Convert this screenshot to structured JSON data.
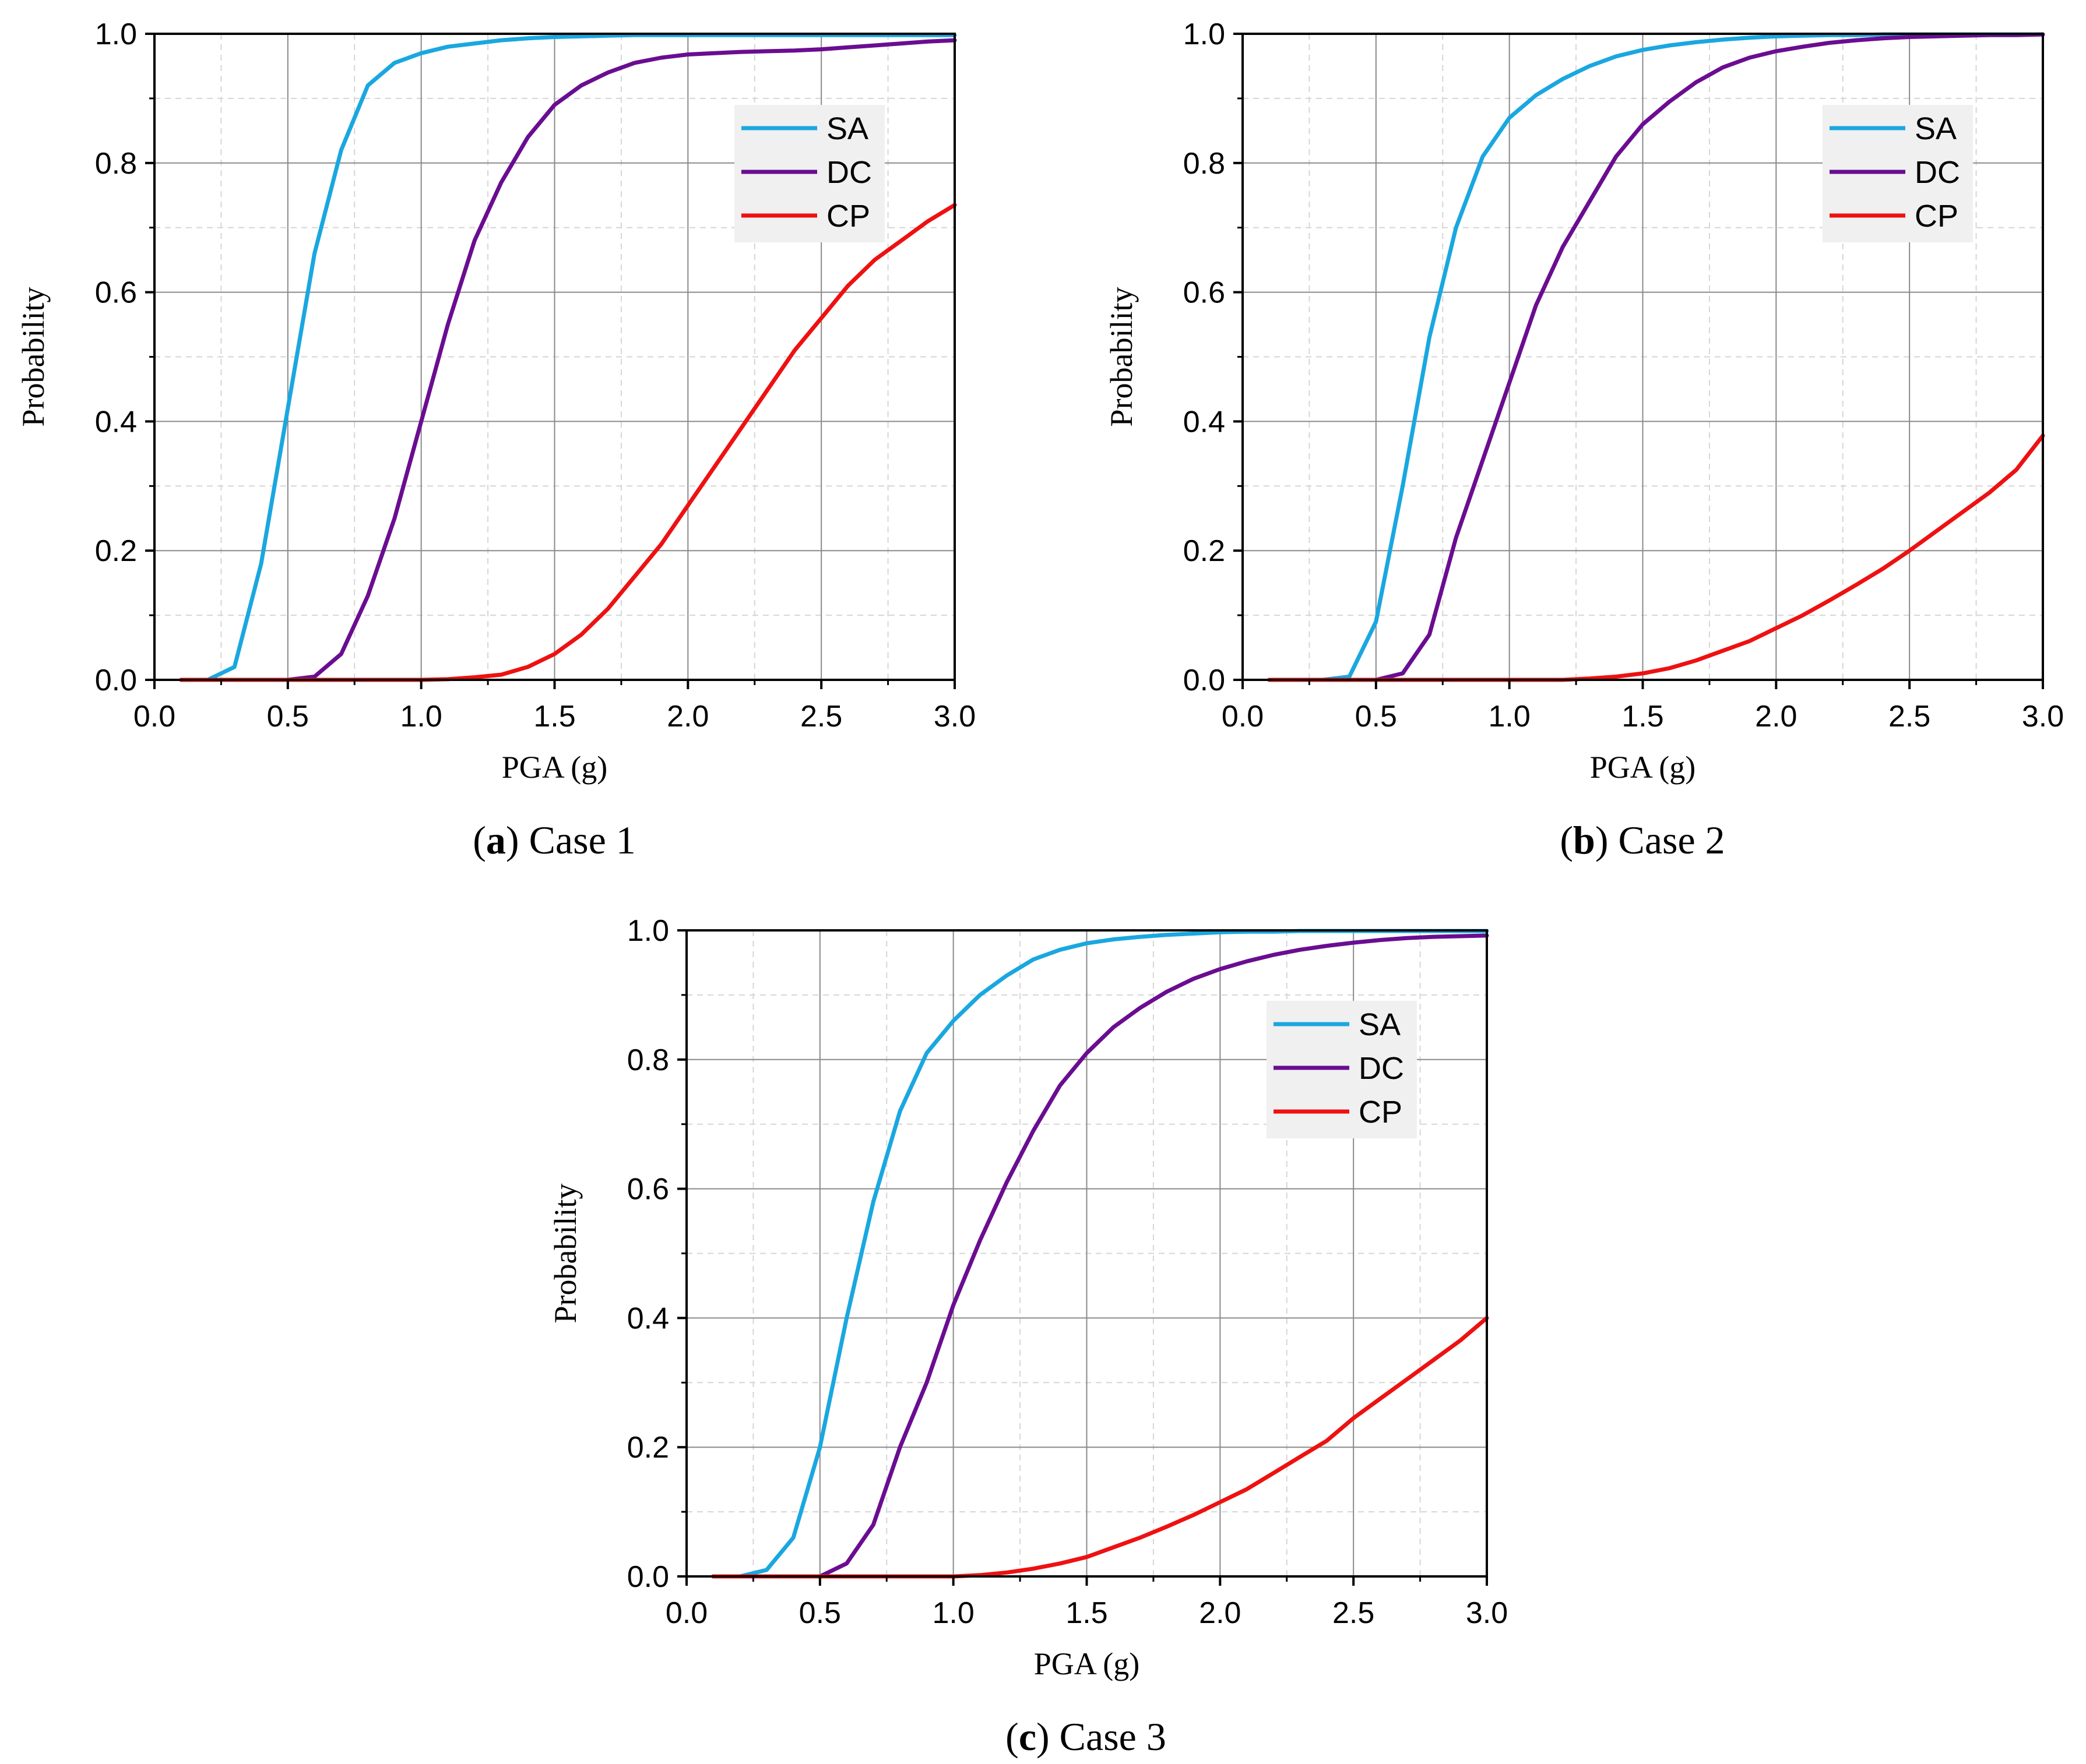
{
  "colors": {
    "SA": "#1aa7e0",
    "DC": "#6a0d91",
    "CP": "#ee1111",
    "grid_major": "#8a8a8a",
    "grid_minor": "#d6d6d6",
    "legend_bg": "#f0f0f0"
  },
  "chart_data": [
    {
      "type": "line",
      "caption": {
        "open": "(",
        "letter": "a",
        "close": ")",
        "text": " Case 1"
      },
      "xlabel": "PGA (g)",
      "ylabel": "Probability",
      "xlim": [
        0,
        3
      ],
      "ylim": [
        0,
        1
      ],
      "xticks": [
        "0.0",
        "0.5",
        "1.0",
        "1.5",
        "2.0",
        "2.5",
        "3.0"
      ],
      "yticks": [
        "0.0",
        "0.2",
        "0.4",
        "0.6",
        "0.8",
        "1.0"
      ],
      "grid": true,
      "legend_position": "top-right",
      "x": [
        0.1,
        0.2,
        0.3,
        0.4,
        0.5,
        0.6,
        0.7,
        0.8,
        0.9,
        1.0,
        1.1,
        1.2,
        1.3,
        1.4,
        1.5,
        1.6,
        1.7,
        1.8,
        1.9,
        2.0,
        2.1,
        2.2,
        2.3,
        2.4,
        2.5,
        2.6,
        2.7,
        2.8,
        2.9,
        3.0
      ],
      "series": [
        {
          "name": "SA",
          "values": [
            0,
            0,
            0.02,
            0.18,
            0.42,
            0.66,
            0.82,
            0.92,
            0.955,
            0.97,
            0.98,
            0.985,
            0.99,
            0.993,
            0.995,
            0.996,
            0.997,
            0.998,
            0.998,
            0.998,
            0.998,
            0.998,
            0.998,
            0.998,
            0.998,
            0.998,
            0.998,
            0.998,
            0.998,
            0.998
          ]
        },
        {
          "name": "DC",
          "values": [
            0,
            0,
            0,
            0,
            0,
            0.005,
            0.04,
            0.13,
            0.25,
            0.4,
            0.55,
            0.68,
            0.77,
            0.84,
            0.89,
            0.92,
            0.94,
            0.955,
            0.963,
            0.968,
            0.97,
            0.972,
            0.973,
            0.974,
            0.976,
            0.979,
            0.982,
            0.985,
            0.988,
            0.99
          ]
        },
        {
          "name": "CP",
          "values": [
            0,
            0,
            0,
            0,
            0,
            0,
            0,
            0,
            0,
            0,
            0.001,
            0.004,
            0.008,
            0.02,
            0.04,
            0.07,
            0.11,
            0.16,
            0.21,
            0.27,
            0.33,
            0.39,
            0.45,
            0.51,
            0.56,
            0.61,
            0.65,
            0.68,
            0.71,
            0.735
          ]
        }
      ]
    },
    {
      "type": "line",
      "caption": {
        "open": "(",
        "letter": "b",
        "close": ")",
        "text": " Case 2"
      },
      "xlabel": "PGA (g)",
      "ylabel": "Probability",
      "xlim": [
        0,
        3
      ],
      "ylim": [
        0,
        1
      ],
      "xticks": [
        "0.0",
        "0.5",
        "1.0",
        "1.5",
        "2.0",
        "2.5",
        "3.0"
      ],
      "yticks": [
        "0.0",
        "0.2",
        "0.4",
        "0.6",
        "0.8",
        "1.0"
      ],
      "grid": true,
      "legend_position": "top-right",
      "x": [
        0.1,
        0.2,
        0.3,
        0.4,
        0.5,
        0.6,
        0.7,
        0.8,
        0.9,
        1.0,
        1.1,
        1.2,
        1.3,
        1.4,
        1.5,
        1.6,
        1.7,
        1.8,
        1.9,
        2.0,
        2.1,
        2.2,
        2.3,
        2.4,
        2.5,
        2.6,
        2.7,
        2.8,
        2.9,
        3.0
      ],
      "series": [
        {
          "name": "SA",
          "values": [
            0,
            0,
            0,
            0.005,
            0.09,
            0.3,
            0.53,
            0.7,
            0.81,
            0.87,
            0.905,
            0.93,
            0.95,
            0.965,
            0.975,
            0.982,
            0.987,
            0.991,
            0.994,
            0.996,
            0.997,
            0.998,
            0.998,
            0.999,
            0.999,
            0.999,
            0.999,
            0.999,
            0.999,
            0.999
          ]
        },
        {
          "name": "DC",
          "values": [
            0,
            0,
            0,
            0,
            0,
            0.01,
            0.07,
            0.22,
            0.34,
            0.46,
            0.58,
            0.67,
            0.74,
            0.81,
            0.86,
            0.895,
            0.925,
            0.948,
            0.963,
            0.973,
            0.98,
            0.986,
            0.99,
            0.993,
            0.995,
            0.996,
            0.997,
            0.998,
            0.998,
            0.999
          ]
        },
        {
          "name": "CP",
          "values": [
            0,
            0,
            0,
            0,
            0,
            0,
            0,
            0,
            0,
            0,
            0,
            0,
            0.002,
            0.005,
            0.01,
            0.018,
            0.03,
            0.045,
            0.06,
            0.08,
            0.1,
            0.123,
            0.147,
            0.172,
            0.2,
            0.23,
            0.26,
            0.29,
            0.325,
            0.378
          ]
        }
      ]
    },
    {
      "type": "line",
      "caption": {
        "open": "(",
        "letter": "c",
        "close": ")",
        "text": " Case 3"
      },
      "xlabel": "PGA (g)",
      "ylabel": "Probability",
      "xlim": [
        0,
        3
      ],
      "ylim": [
        0,
        1
      ],
      "xticks": [
        "0.0",
        "0.5",
        "1.0",
        "1.5",
        "2.0",
        "2.5",
        "3.0"
      ],
      "yticks": [
        "0.0",
        "0.2",
        "0.4",
        "0.6",
        "0.8",
        "1.0"
      ],
      "grid": true,
      "legend_position": "top-right",
      "x": [
        0.1,
        0.2,
        0.3,
        0.4,
        0.5,
        0.6,
        0.7,
        0.8,
        0.9,
        1.0,
        1.1,
        1.2,
        1.3,
        1.4,
        1.5,
        1.6,
        1.7,
        1.8,
        1.9,
        2.0,
        2.1,
        2.2,
        2.3,
        2.4,
        2.5,
        2.6,
        2.7,
        2.8,
        2.9,
        3.0
      ],
      "series": [
        {
          "name": "SA",
          "values": [
            0,
            0,
            0.01,
            0.06,
            0.2,
            0.4,
            0.58,
            0.72,
            0.81,
            0.86,
            0.9,
            0.93,
            0.955,
            0.97,
            0.98,
            0.986,
            0.99,
            0.993,
            0.995,
            0.997,
            0.998,
            0.998,
            0.999,
            0.999,
            0.999,
            0.999,
            0.999,
            0.999,
            0.999,
            0.999
          ]
        },
        {
          "name": "DC",
          "values": [
            0,
            0,
            0,
            0,
            0,
            0.02,
            0.08,
            0.2,
            0.3,
            0.42,
            0.52,
            0.61,
            0.69,
            0.76,
            0.81,
            0.85,
            0.88,
            0.905,
            0.925,
            0.94,
            0.952,
            0.962,
            0.97,
            0.976,
            0.981,
            0.985,
            0.988,
            0.99,
            0.991,
            0.992
          ]
        },
        {
          "name": "CP",
          "values": [
            0,
            0,
            0,
            0,
            0,
            0,
            0,
            0,
            0,
            0,
            0.002,
            0.006,
            0.012,
            0.02,
            0.03,
            0.045,
            0.06,
            0.077,
            0.095,
            0.115,
            0.135,
            0.16,
            0.185,
            0.21,
            0.245,
            0.275,
            0.305,
            0.335,
            0.365,
            0.4
          ]
        }
      ]
    }
  ]
}
